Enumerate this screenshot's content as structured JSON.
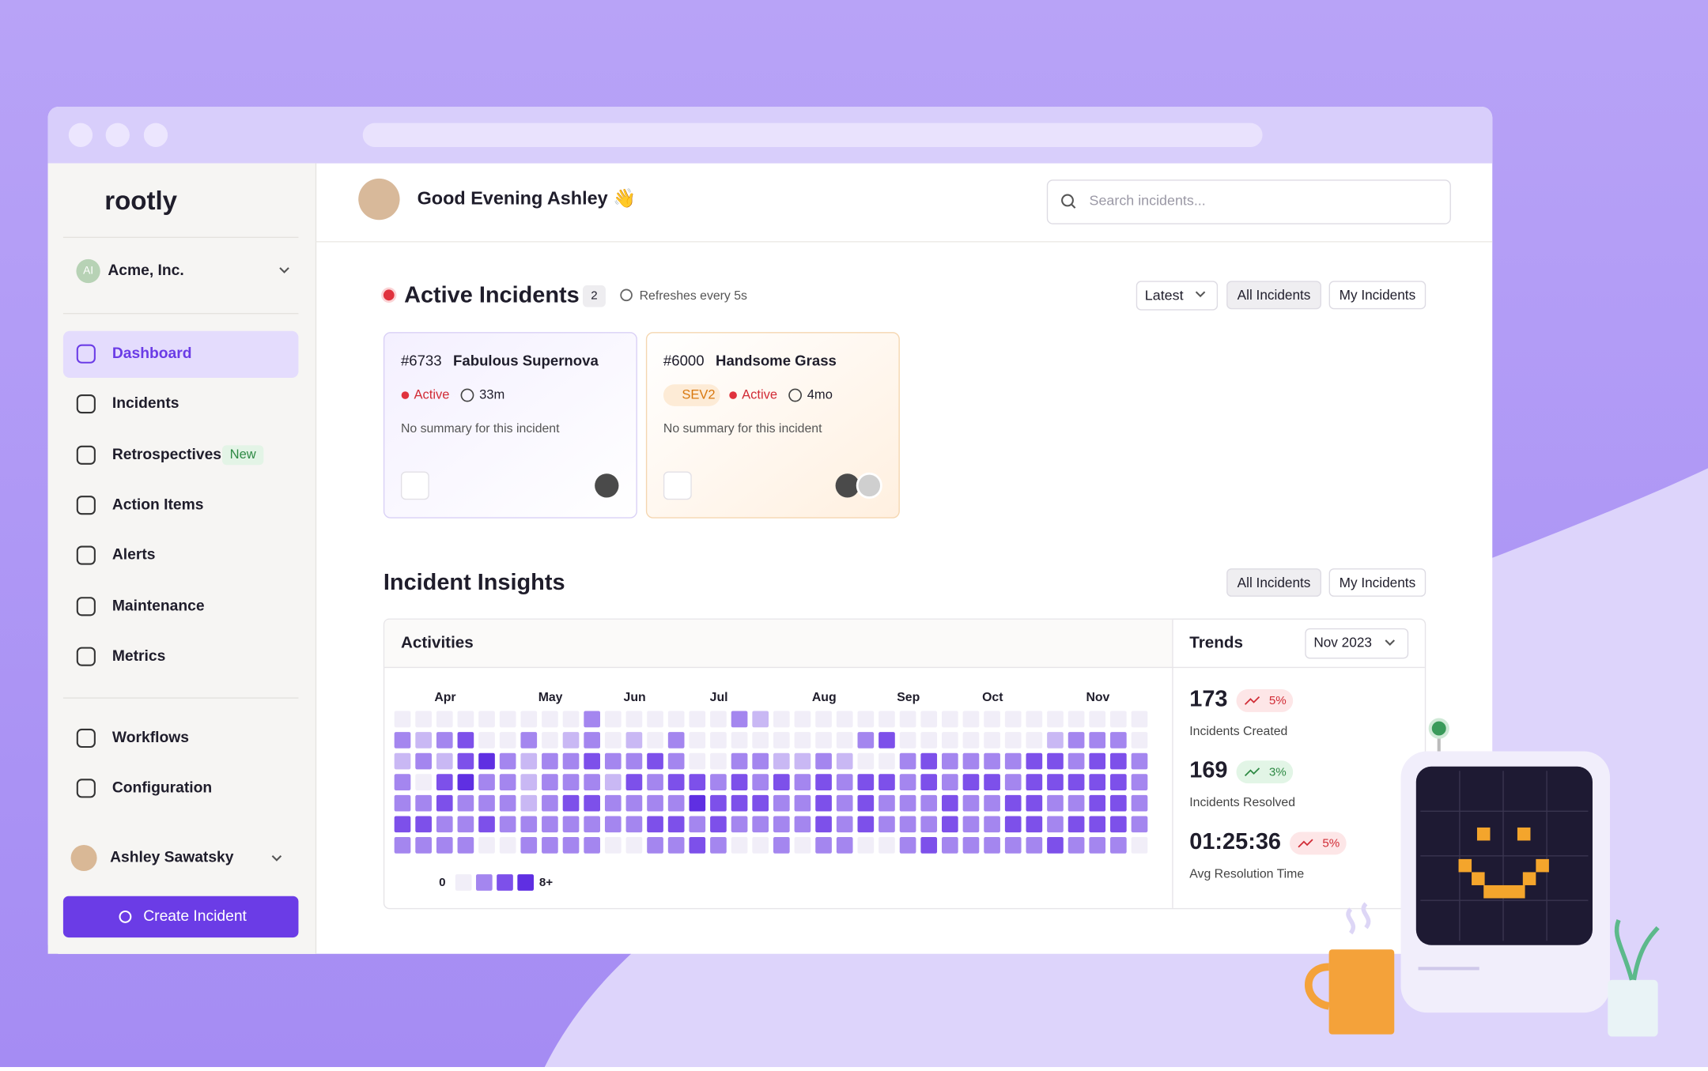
{
  "header": {
    "logo": "rootly",
    "greeting": "Good Evening Ashley 👋",
    "search_placeholder": "Search incidents..."
  },
  "sidebar": {
    "org": "Acme, Inc.",
    "org_initials": "AI",
    "nav": [
      {
        "label": "Dashboard"
      },
      {
        "label": "Incidents"
      },
      {
        "label": "Retrospectives",
        "badge": "New"
      },
      {
        "label": "Action Items"
      },
      {
        "label": "Alerts"
      },
      {
        "label": "Maintenance"
      },
      {
        "label": "Metrics"
      }
    ],
    "nav2": [
      {
        "label": "Workflows"
      },
      {
        "label": "Configuration"
      }
    ],
    "user": "Ashley Sawatsky",
    "cta": "Create Incident"
  },
  "active": {
    "title": "Active Incidents",
    "count": "2",
    "refresh": "Refreshes every 5s",
    "sort": "Latest",
    "filters": [
      "All Incidents",
      "My Incidents"
    ],
    "cards": [
      {
        "id": "#6733",
        "name": "Fabulous Supernova",
        "status": "Active",
        "age": "33m",
        "summary": "No summary for this incident"
      },
      {
        "id": "#6000",
        "name": "Handsome Grass",
        "sev": "SEV2",
        "status": "Active",
        "age": "4mo",
        "summary": "No summary for this incident"
      }
    ]
  },
  "insights": {
    "title": "Incident Insights",
    "filters": [
      "All Incidents",
      "My Incidents"
    ],
    "activities": {
      "title": "Activities",
      "columns": [
        null,
        null,
        "Apr",
        null,
        null,
        null,
        null,
        "May",
        null,
        null,
        null,
        "Jun",
        null,
        null,
        null,
        "Jul",
        null,
        null,
        null,
        null,
        "Aug",
        null,
        null,
        null,
        "Sep",
        null,
        null,
        null,
        "Oct",
        null,
        null,
        null,
        null,
        "Nov",
        null,
        null
      ],
      "colors": [
        "#f1eef8",
        "#c9b8f4",
        "#a486ef",
        "#7d50ea",
        "#5f2fe2"
      ],
      "rows": [
        [
          0,
          0,
          0,
          0,
          0,
          0,
          0,
          0,
          0,
          2,
          0,
          0,
          0,
          0,
          0,
          0,
          2,
          1,
          0,
          0,
          0,
          0,
          0,
          0,
          0,
          0,
          0,
          0,
          0,
          0,
          0,
          0,
          0,
          0,
          0,
          0
        ],
        [
          2,
          1,
          2,
          3,
          0,
          0,
          2,
          0,
          1,
          2,
          0,
          1,
          0,
          2,
          0,
          0,
          0,
          0,
          0,
          0,
          0,
          0,
          2,
          3,
          0,
          0,
          0,
          0,
          0,
          0,
          0,
          1,
          2,
          2,
          2,
          0
        ],
        [
          1,
          2,
          1,
          3,
          4,
          2,
          1,
          2,
          2,
          3,
          2,
          2,
          3,
          2,
          0,
          0,
          2,
          2,
          1,
          1,
          2,
          1,
          0,
          0,
          2,
          3,
          2,
          2,
          2,
          2,
          3,
          3,
          2,
          3,
          3,
          2
        ],
        [
          2,
          0,
          3,
          4,
          2,
          2,
          1,
          2,
          2,
          2,
          1,
          3,
          2,
          3,
          3,
          2,
          3,
          2,
          3,
          2,
          3,
          2,
          3,
          3,
          2,
          3,
          2,
          3,
          3,
          2,
          3,
          3,
          3,
          3,
          3,
          2
        ],
        [
          2,
          2,
          3,
          2,
          2,
          2,
          1,
          2,
          3,
          3,
          2,
          2,
          2,
          2,
          4,
          3,
          3,
          3,
          2,
          2,
          3,
          2,
          3,
          2,
          2,
          2,
          3,
          2,
          2,
          3,
          3,
          2,
          2,
          3,
          3,
          2
        ],
        [
          3,
          3,
          2,
          2,
          3,
          2,
          2,
          2,
          2,
          2,
          2,
          2,
          3,
          3,
          2,
          3,
          2,
          2,
          2,
          2,
          3,
          2,
          3,
          2,
          2,
          2,
          3,
          2,
          2,
          3,
          3,
          2,
          3,
          3,
          3,
          2
        ],
        [
          2,
          2,
          2,
          2,
          0,
          0,
          2,
          2,
          2,
          2,
          0,
          0,
          2,
          2,
          3,
          2,
          0,
          0,
          2,
          0,
          2,
          2,
          0,
          0,
          2,
          3,
          2,
          2,
          2,
          2,
          2,
          3,
          2,
          2,
          2,
          0
        ]
      ],
      "legend_min": "0",
      "legend_max": "8+"
    },
    "trends": {
      "title": "Trends",
      "period": "Nov 2023",
      "items": [
        {
          "value": "173",
          "change": "5%",
          "label": "Incidents Created",
          "dir": "bad"
        },
        {
          "value": "169",
          "change": "3%",
          "label": "Incidents Resolved",
          "dir": "good"
        },
        {
          "value": "01:25:36",
          "change": "5%",
          "label": "Avg Resolution Time",
          "dir": "bad"
        }
      ]
    }
  }
}
